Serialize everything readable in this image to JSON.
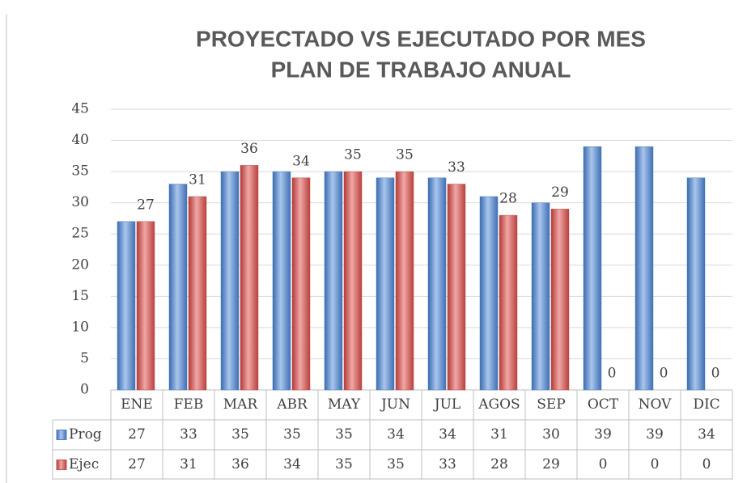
{
  "chart_data": {
    "type": "bar",
    "title_lines": [
      "PROYECTADO VS EJECUTADO POR MES",
      "PLAN DE TRABAJO ANUAL"
    ],
    "categories": [
      "ENE",
      "FEB",
      "MAR",
      "ABR",
      "MAY",
      "JUN",
      "JUL",
      "AGOS",
      "SEP",
      "OCT",
      "NOV",
      "DIC"
    ],
    "series": [
      {
        "name": "Prog",
        "color": "#4f81bd",
        "values": [
          27,
          33,
          35,
          35,
          35,
          34,
          34,
          31,
          30,
          39,
          39,
          34
        ]
      },
      {
        "name": "Ejec",
        "color": "#c0504d",
        "values": [
          27,
          31,
          36,
          34,
          35,
          35,
          33,
          28,
          29,
          0,
          0,
          0
        ]
      }
    ],
    "data_labels_series": 1,
    "ylim": [
      0,
      45
    ],
    "yticks": [
      0,
      5,
      10,
      15,
      20,
      25,
      30,
      35,
      40,
      45
    ],
    "grid": true
  }
}
